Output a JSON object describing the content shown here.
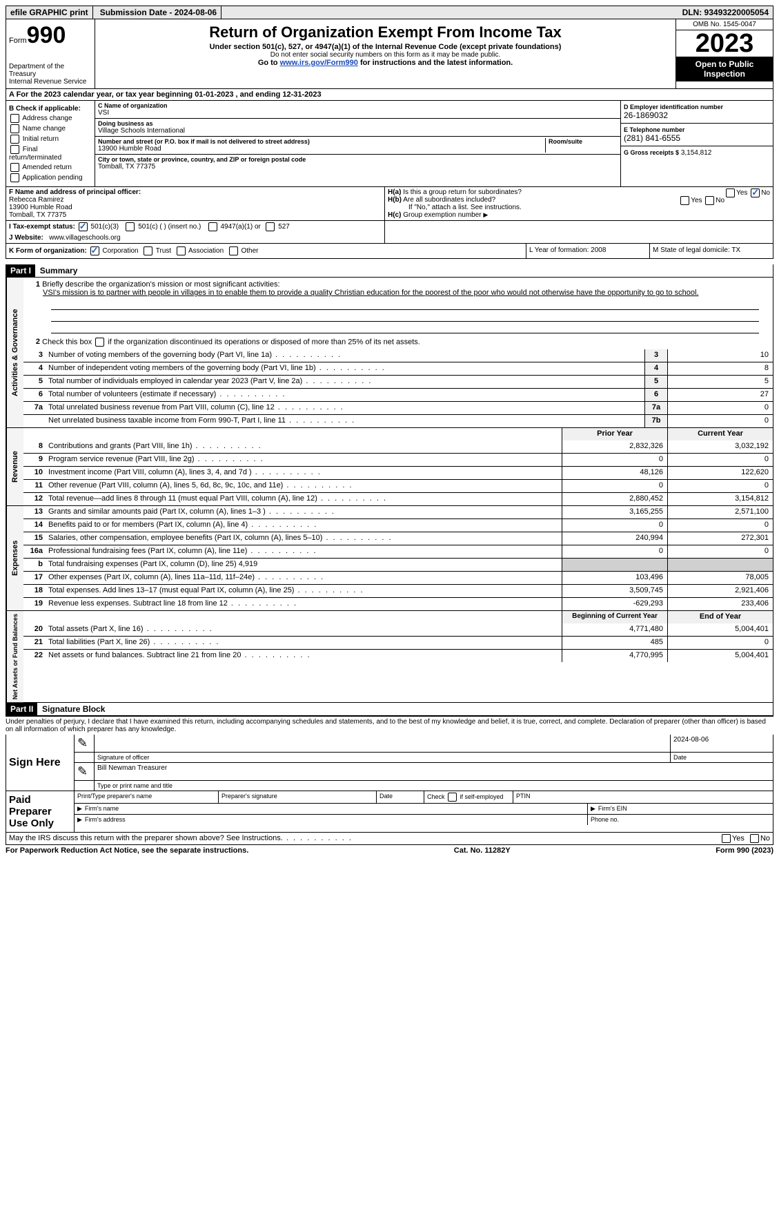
{
  "topbar": {
    "efile": "efile GRAPHIC print",
    "submission": "Submission Date - 2024-08-06",
    "dln": "DLN: 93493220005054"
  },
  "header": {
    "form_label": "Form",
    "form_number": "990",
    "title": "Return of Organization Exempt From Income Tax",
    "subtitle": "Under section 501(c), 527, or 4947(a)(1) of the Internal Revenue Code (except private foundations)",
    "warn": "Do not enter social security numbers on this form as it may be made public.",
    "goto": "Go to www.irs.gov/Form990 for instructions and the latest information.",
    "dept": "Department of the Treasury",
    "irs": "Internal Revenue Service",
    "omb": "OMB No. 1545-0047",
    "year": "2023",
    "open": "Open to Public Inspection"
  },
  "row_a": "A  For the 2023 calendar year, or tax year beginning 01-01-2023   , and ending 12-31-2023",
  "section_b": {
    "title": "B Check if applicable:",
    "items": [
      "Address change",
      "Name change",
      "Initial return",
      "Final return/terminated",
      "Amended return",
      "Application pending"
    ]
  },
  "section_c": {
    "name_label": "C Name of organization",
    "name": "VSI",
    "dba_label": "Doing business as",
    "dba": "Village Schools International",
    "street_label": "Number and street (or P.O. box if mail is not delivered to street address)",
    "street": "13900 Humble Road",
    "room_label": "Room/suite",
    "city_label": "City or town, state or province, country, and ZIP or foreign postal code",
    "city": "Tomball, TX  77375"
  },
  "section_d": {
    "ein_label": "D Employer identification number",
    "ein": "26-1869032",
    "phone_label": "E Telephone number",
    "phone": "(281) 841-6555",
    "gross_label": "G Gross receipts $",
    "gross": "3,154,812"
  },
  "section_f": {
    "label": "F  Name and address of principal officer:",
    "name": "Rebecca Ramirez",
    "street": "13900 Humble Road",
    "city": "Tomball, TX  77375"
  },
  "section_h": {
    "ha": "H(a)  Is this a group return for subordinates?",
    "hb": "H(b)  Are all subordinates included?",
    "hb_note": "If \"No,\" attach a list. See instructions.",
    "hc": "H(c)  Group exemption number",
    "yes": "Yes",
    "no": "No"
  },
  "row_i": {
    "label": "I    Tax-exempt status:",
    "opts": [
      "501(c)(3)",
      "501(c) (  ) (insert no.)",
      "4947(a)(1) or",
      "527"
    ]
  },
  "row_j": {
    "label": "J   Website:",
    "val": "www.villageschools.org"
  },
  "row_k": {
    "label": "K Form of organization:",
    "opts": [
      "Corporation",
      "Trust",
      "Association",
      "Other"
    ],
    "l": "L Year of formation: 2008",
    "m": "M State of legal domicile: TX"
  },
  "part1": {
    "hdr": "Part I",
    "title": "Summary",
    "q1": "Briefly describe the organization's mission or most significant activities:",
    "mission": "VSI's mission is to partner with people in villages in to enable them to provide a quality Christian education for the poorest of the poor who would not otherwise have the opportunity to go to school.",
    "q2": "Check this box        if the organization discontinued its operations or disposed of more than 25% of its net assets."
  },
  "gov_lines": [
    {
      "n": "3",
      "t": "Number of voting members of the governing body (Part VI, line 1a)",
      "box": "3",
      "v": "10"
    },
    {
      "n": "4",
      "t": "Number of independent voting members of the governing body (Part VI, line 1b)",
      "box": "4",
      "v": "8"
    },
    {
      "n": "5",
      "t": "Total number of individuals employed in calendar year 2023 (Part V, line 2a)",
      "box": "5",
      "v": "5"
    },
    {
      "n": "6",
      "t": "Total number of volunteers (estimate if necessary)",
      "box": "6",
      "v": "27"
    },
    {
      "n": "7a",
      "t": "Total unrelated business revenue from Part VIII, column (C), line 12",
      "box": "7a",
      "v": "0"
    },
    {
      "n": "",
      "t": "Net unrelated business taxable income from Form 990-T, Part I, line 11",
      "box": "7b",
      "v": "0"
    }
  ],
  "rev_hdr": {
    "py": "Prior Year",
    "cy": "Current Year"
  },
  "rev_lines": [
    {
      "n": "8",
      "t": "Contributions and grants (Part VIII, line 1h)",
      "py": "2,832,326",
      "cy": "3,032,192"
    },
    {
      "n": "9",
      "t": "Program service revenue (Part VIII, line 2g)",
      "py": "0",
      "cy": "0"
    },
    {
      "n": "10",
      "t": "Investment income (Part VIII, column (A), lines 3, 4, and 7d )",
      "py": "48,126",
      "cy": "122,620"
    },
    {
      "n": "11",
      "t": "Other revenue (Part VIII, column (A), lines 5, 6d, 8c, 9c, 10c, and 11e)",
      "py": "0",
      "cy": "0"
    },
    {
      "n": "12",
      "t": "Total revenue—add lines 8 through 11 (must equal Part VIII, column (A), line 12)",
      "py": "2,880,452",
      "cy": "3,154,812"
    }
  ],
  "exp_lines": [
    {
      "n": "13",
      "t": "Grants and similar amounts paid (Part IX, column (A), lines 1–3 )",
      "py": "3,165,255",
      "cy": "2,571,100"
    },
    {
      "n": "14",
      "t": "Benefits paid to or for members (Part IX, column (A), line 4)",
      "py": "0",
      "cy": "0"
    },
    {
      "n": "15",
      "t": "Salaries, other compensation, employee benefits (Part IX, column (A), lines 5–10)",
      "py": "240,994",
      "cy": "272,301"
    },
    {
      "n": "16a",
      "t": "Professional fundraising fees (Part IX, column (A), line 11e)",
      "py": "0",
      "cy": "0"
    },
    {
      "n": "b",
      "t": "Total fundraising expenses (Part IX, column (D), line 25) 4,919",
      "py": "",
      "cy": "",
      "shade": true
    },
    {
      "n": "17",
      "t": "Other expenses (Part IX, column (A), lines 11a–11d, 11f–24e)",
      "py": "103,496",
      "cy": "78,005"
    },
    {
      "n": "18",
      "t": "Total expenses. Add lines 13–17 (must equal Part IX, column (A), line 25)",
      "py": "3,509,745",
      "cy": "2,921,406"
    },
    {
      "n": "19",
      "t": "Revenue less expenses. Subtract line 18 from line 12",
      "py": "-629,293",
      "cy": "233,406"
    }
  ],
  "na_hdr": {
    "py": "Beginning of Current Year",
    "cy": "End of Year"
  },
  "na_lines": [
    {
      "n": "20",
      "t": "Total assets (Part X, line 16)",
      "py": "4,771,480",
      "cy": "5,004,401"
    },
    {
      "n": "21",
      "t": "Total liabilities (Part X, line 26)",
      "py": "485",
      "cy": "0"
    },
    {
      "n": "22",
      "t": "Net assets or fund balances. Subtract line 21 from line 20",
      "py": "4,770,995",
      "cy": "5,004,401"
    }
  ],
  "vlabels": {
    "gov": "Activities & Governance",
    "rev": "Revenue",
    "exp": "Expenses",
    "na": "Net Assets or Fund Balances"
  },
  "part2": {
    "hdr": "Part II",
    "title": "Signature Block",
    "decl": "Under penalties of perjury, I declare that I have examined this return, including accompanying schedules and statements, and to the best of my knowledge and belief, it is true, correct, and complete. Declaration of preparer (other than officer) is based on all information of which preparer has any knowledge."
  },
  "sign": {
    "here": "Sign Here",
    "sig_officer": "Signature of officer",
    "officer": "Bill Newman  Treasurer",
    "type_label": "Type or print name and title",
    "date_label": "Date",
    "date": "2024-08-06"
  },
  "paid": {
    "label": "Paid Preparer Use Only",
    "name": "Print/Type preparer's name",
    "sig": "Preparer's signature",
    "date": "Date",
    "self": "Check        if self-employed",
    "ptin": "PTIN",
    "firm": "Firm's name",
    "ein": "Firm's EIN",
    "addr": "Firm's address",
    "phone": "Phone no."
  },
  "discuss": "May the IRS discuss this return with the preparer shown above? See Instructions.",
  "footer": {
    "pra": "For Paperwork Reduction Act Notice, see the separate instructions.",
    "cat": "Cat. No. 11282Y",
    "form": "Form 990 (2023)"
  }
}
